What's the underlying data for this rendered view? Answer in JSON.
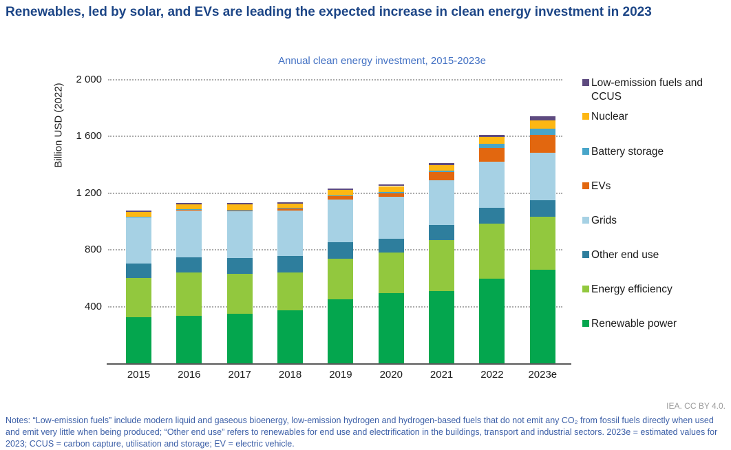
{
  "page_title": "Renewables, led by solar, and EVs are leading the expected increase in clean energy investment in 2023",
  "chart_data": {
    "type": "bar",
    "stacked": true,
    "title": "Annual clean energy investment, 2015-2023e",
    "xlabel": "",
    "ylabel": "Billion USD (2022)",
    "ylim": [
      0,
      2000
    ],
    "ytick_values": [
      400,
      800,
      1200,
      1600,
      2000
    ],
    "ytick_labels": [
      "400",
      "800",
      "1 200",
      "1 600",
      "2 000"
    ],
    "grid": "horizontal-dotted",
    "legend_position": "right",
    "categories": [
      "2015",
      "2016",
      "2017",
      "2018",
      "2019",
      "2020",
      "2021",
      "2022",
      "2023e"
    ],
    "series_bottom_to_top": [
      {
        "name": "Renewable power",
        "color": "#04a64e",
        "values": [
          327,
          337,
          350,
          372,
          453,
          497,
          510,
          595,
          660
        ]
      },
      {
        "name": "Energy efficiency",
        "color": "#92c83e",
        "values": [
          276,
          305,
          282,
          271,
          287,
          284,
          357,
          390,
          375
        ]
      },
      {
        "name": "Other end use",
        "color": "#2e7e9d",
        "values": [
          100,
          104,
          113,
          113,
          113,
          97,
          108,
          112,
          115
        ]
      },
      {
        "name": "Grids",
        "color": "#a6d1e4",
        "values": [
          330,
          335,
          330,
          321,
          302,
          295,
          318,
          324,
          335
        ]
      },
      {
        "name": "EVs",
        "color": "#e2670f",
        "values": [
          2,
          3,
          6,
          16,
          23,
          28,
          55,
          100,
          129
        ]
      },
      {
        "name": "Battery storage",
        "color": "#48a5c9",
        "values": [
          1,
          1,
          1,
          4,
          8,
          7,
          13,
          29,
          40
        ]
      },
      {
        "name": "Nuclear",
        "color": "#fdb713",
        "values": [
          32,
          38,
          38,
          29,
          39,
          42,
          39,
          46,
          60
        ]
      },
      {
        "name": "Low-emission fuels and CCUS",
        "color": "#5d4a7f",
        "values": [
          8,
          9,
          9,
          10,
          10,
          10,
          13,
          18,
          29
        ]
      }
    ],
    "totals_approx": [
      1076,
      1132,
      1129,
      1136,
      1235,
      1260,
      1413,
      1614,
      1743
    ]
  },
  "legend_labels_top_to_bottom": [
    "Low-emission fuels and CCUS",
    "Nuclear",
    "Battery storage",
    "EVs",
    "Grids",
    "Other end use",
    "Energy efficiency",
    "Renewable power"
  ],
  "footer": {
    "credit": "IEA. CC BY 4.0.",
    "notes": "Notes: “Low-emission fuels” include modern liquid and gaseous bioenergy, low-emission hydrogen and hydrogen-based fuels that do not emit any CO₂ from fossil fuels directly when used and emit very little when being produced; “Other end use” refers to renewables for end use and electrification in the buildings, transport and industrial sectors. 2023e = estimated values for 2023; CCUS = carbon capture, utilisation and storage; EV = electric vehicle."
  }
}
